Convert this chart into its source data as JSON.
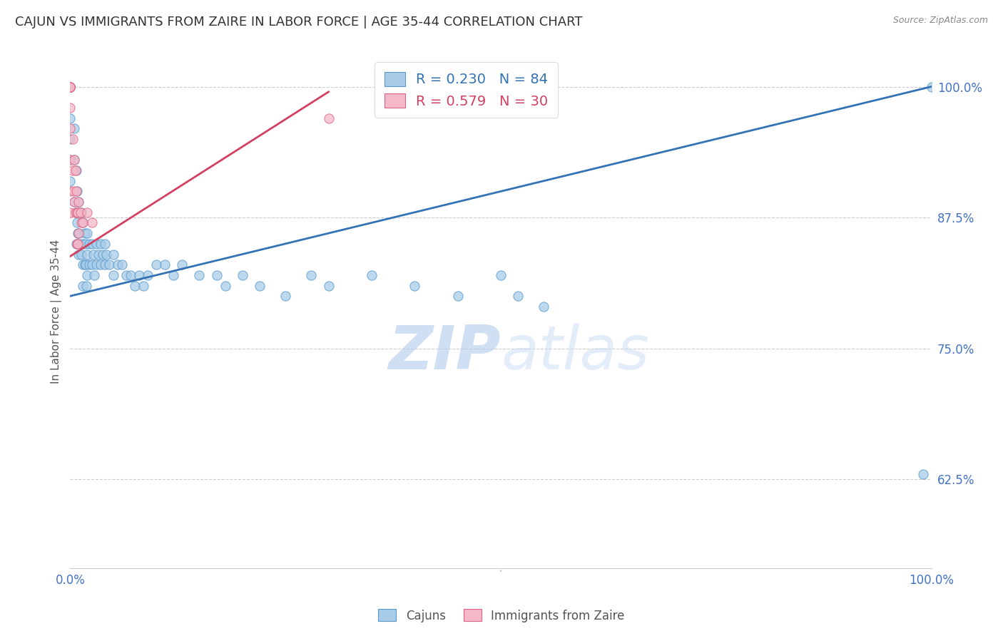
{
  "title": "CAJUN VS IMMIGRANTS FROM ZAIRE IN LABOR FORCE | AGE 35-44 CORRELATION CHART",
  "source": "Source: ZipAtlas.com",
  "ylabel": "In Labor Force | Age 35-44",
  "watermark": "ZIPatlas",
  "cajun_R": 0.23,
  "cajun_N": 84,
  "zaire_R": 0.579,
  "zaire_N": 30,
  "cajun_color": "#a8cce8",
  "zaire_color": "#f4b8c8",
  "cajun_edge_color": "#5599cc",
  "zaire_edge_color": "#e06080",
  "cajun_line_color": "#3373b5",
  "zaire_line_color": "#d44060",
  "xlim": [
    0.0,
    1.0
  ],
  "ylim": [
    0.54,
    1.03
  ],
  "yticks": [
    0.625,
    0.75,
    0.875,
    1.0
  ],
  "ytick_labels": [
    "62.5%",
    "75.0%",
    "87.5%",
    "100.0%"
  ],
  "xtick_labels_left": "0.0%",
  "xtick_labels_right": "100.0%",
  "grid_color": "#cccccc",
  "background_color": "#ffffff",
  "title_fontsize": 13,
  "axis_label_fontsize": 11,
  "tick_fontsize": 12,
  "cajun_line": {
    "x0": 0.0,
    "x1": 1.0,
    "y0": 0.8,
    "y1": 1.0
  },
  "zaire_line": {
    "x0": 0.0,
    "x1": 0.3,
    "y0": 0.838,
    "y1": 0.995
  },
  "cajun_x": [
    0.0,
    0.0,
    0.0,
    0.0,
    0.0,
    0.0,
    0.0,
    0.0,
    0.0,
    0.0,
    0.005,
    0.005,
    0.005,
    0.007,
    0.007,
    0.007,
    0.008,
    0.008,
    0.009,
    0.01,
    0.01,
    0.01,
    0.012,
    0.012,
    0.013,
    0.013,
    0.015,
    0.015,
    0.015,
    0.015,
    0.017,
    0.017,
    0.018,
    0.018,
    0.019,
    0.02,
    0.02,
    0.02,
    0.022,
    0.022,
    0.025,
    0.025,
    0.027,
    0.028,
    0.03,
    0.03,
    0.033,
    0.035,
    0.035,
    0.038,
    0.04,
    0.04,
    0.042,
    0.045,
    0.05,
    0.05,
    0.055,
    0.06,
    0.065,
    0.07,
    0.075,
    0.08,
    0.085,
    0.09,
    0.1,
    0.11,
    0.12,
    0.13,
    0.15,
    0.17,
    0.18,
    0.2,
    0.22,
    0.25,
    0.28,
    0.3,
    0.35,
    0.4,
    0.45,
    0.5,
    0.52,
    0.55,
    0.99,
    1.0
  ],
  "cajun_y": [
    1.0,
    1.0,
    1.0,
    1.0,
    1.0,
    1.0,
    0.97,
    0.95,
    0.93,
    0.91,
    0.96,
    0.93,
    0.89,
    0.92,
    0.88,
    0.85,
    0.9,
    0.87,
    0.86,
    0.89,
    0.86,
    0.84,
    0.88,
    0.85,
    0.88,
    0.84,
    0.87,
    0.85,
    0.83,
    0.81,
    0.86,
    0.83,
    0.85,
    0.83,
    0.81,
    0.86,
    0.84,
    0.82,
    0.85,
    0.83,
    0.85,
    0.83,
    0.84,
    0.82,
    0.85,
    0.83,
    0.84,
    0.85,
    0.83,
    0.84,
    0.85,
    0.83,
    0.84,
    0.83,
    0.84,
    0.82,
    0.83,
    0.83,
    0.82,
    0.82,
    0.81,
    0.82,
    0.81,
    0.82,
    0.83,
    0.83,
    0.82,
    0.83,
    0.82,
    0.82,
    0.81,
    0.82,
    0.81,
    0.8,
    0.82,
    0.81,
    0.82,
    0.81,
    0.8,
    0.82,
    0.8,
    0.79,
    0.63,
    1.0
  ],
  "zaire_x": [
    0.0,
    0.0,
    0.0,
    0.0,
    0.0,
    0.0,
    0.0,
    0.0,
    0.0,
    0.0,
    0.003,
    0.003,
    0.004,
    0.005,
    0.005,
    0.006,
    0.006,
    0.007,
    0.008,
    0.008,
    0.009,
    0.009,
    0.01,
    0.01,
    0.012,
    0.013,
    0.015,
    0.02,
    0.025,
    0.3
  ],
  "zaire_y": [
    1.0,
    1.0,
    1.0,
    1.0,
    1.0,
    0.98,
    0.96,
    0.93,
    0.9,
    0.88,
    0.95,
    0.92,
    0.9,
    0.93,
    0.89,
    0.92,
    0.88,
    0.9,
    0.88,
    0.85,
    0.88,
    0.85,
    0.89,
    0.86,
    0.88,
    0.87,
    0.87,
    0.88,
    0.87,
    0.97
  ]
}
